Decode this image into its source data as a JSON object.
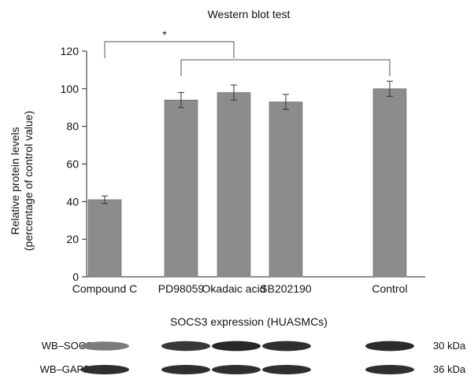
{
  "chart_data": {
    "type": "bar",
    "title": "Western blot test",
    "ylabel_lines": [
      "Relative protein levels",
      "(percentage of control value)"
    ],
    "categories": [
      "Compound C",
      "PD98059",
      "Okadaic acid",
      "SB202190",
      "Control"
    ],
    "values": [
      41,
      94,
      98,
      93,
      100
    ],
    "errors": [
      2,
      4,
      4,
      4,
      4
    ],
    "ylim": [
      0,
      120
    ],
    "yticks": [
      0,
      20,
      40,
      60,
      80,
      100,
      120
    ],
    "bar_color": "#8c8c8c",
    "grid": false,
    "significance": {
      "label": "*",
      "groups": [
        {
          "from": "Compound C",
          "to": "Okadaic acid"
        },
        {
          "from": "PD98059",
          "to": "Control"
        }
      ]
    }
  },
  "blot": {
    "title": "SOCS3 expression (HUASMCs)",
    "rows": [
      {
        "label": "WB–SOCS3",
        "size": "30 kDa",
        "intensities": [
          0.45,
          0.85,
          0.95,
          0.9,
          0.92
        ]
      },
      {
        "label": "WB–GAPDH",
        "size": "36 kDa",
        "intensities": [
          0.9,
          0.9,
          0.9,
          0.9,
          0.9
        ]
      }
    ]
  }
}
